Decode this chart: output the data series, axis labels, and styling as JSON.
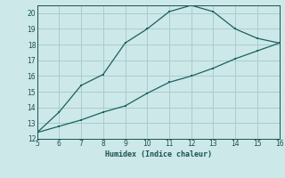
{
  "xlabel": "Humidex (Indice chaleur)",
  "background_color": "#cce8e8",
  "grid_color": "#aacccc",
  "line_color": "#1a6060",
  "xlim": [
    5,
    16
  ],
  "ylim": [
    12,
    20.5
  ],
  "xticks": [
    5,
    6,
    7,
    8,
    9,
    10,
    11,
    12,
    13,
    14,
    15,
    16
  ],
  "yticks": [
    12,
    13,
    14,
    15,
    16,
    17,
    18,
    19,
    20
  ],
  "curve1_x": [
    5,
    6,
    7,
    8,
    9,
    10,
    11,
    12,
    13,
    14,
    15,
    16
  ],
  "curve1_y": [
    12.4,
    13.7,
    15.4,
    16.1,
    18.1,
    19.0,
    20.1,
    20.5,
    20.1,
    19.0,
    18.4,
    18.1
  ],
  "curve2_x": [
    5,
    6,
    7,
    8,
    9,
    10,
    11,
    12,
    13,
    14,
    15,
    16
  ],
  "curve2_y": [
    12.4,
    12.8,
    13.2,
    13.7,
    14.1,
    14.9,
    15.6,
    16.0,
    16.5,
    17.1,
    17.6,
    18.1
  ]
}
